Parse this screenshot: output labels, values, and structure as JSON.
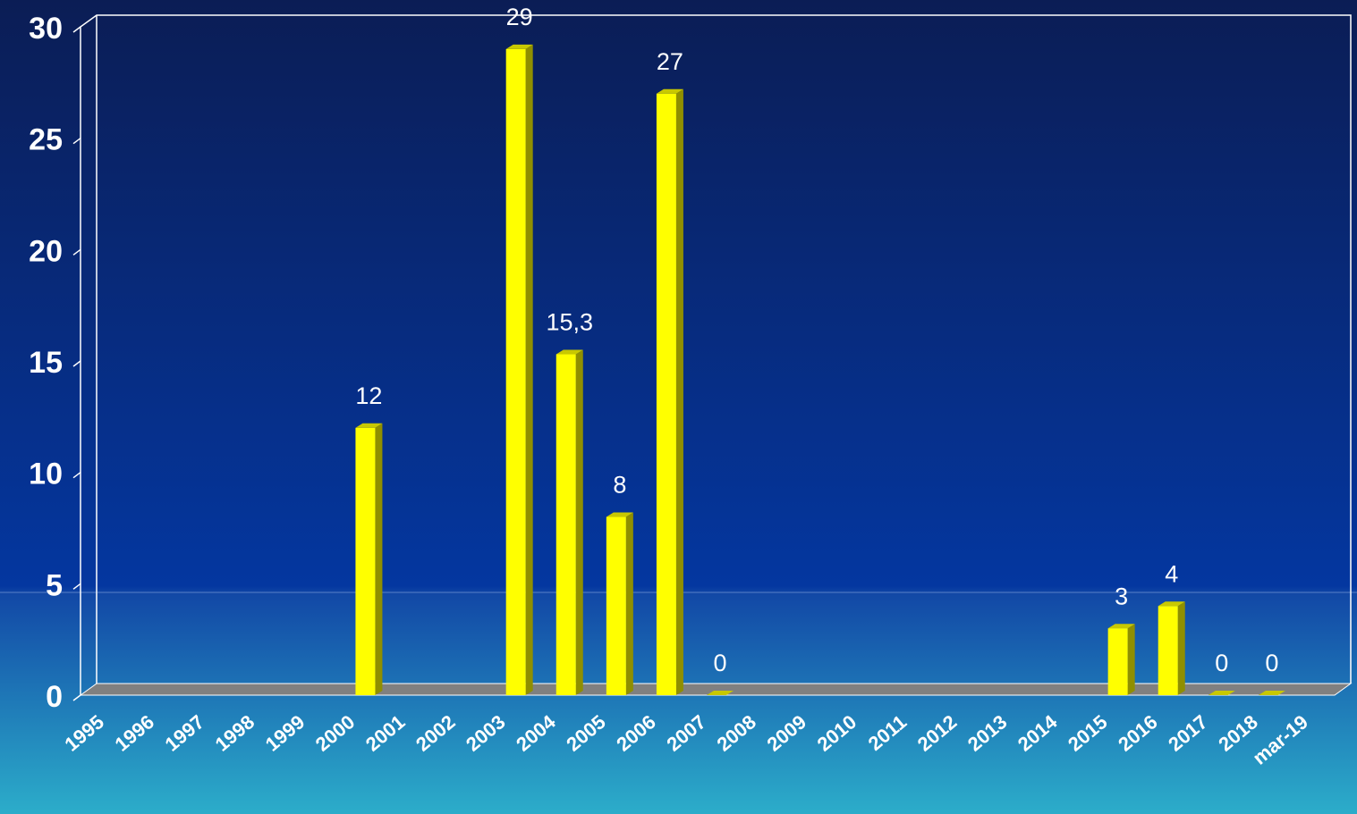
{
  "chart_data": {
    "type": "bar",
    "categories": [
      "1995",
      "1996",
      "1997",
      "1998",
      "1999",
      "2000",
      "2001",
      "2002",
      "2003",
      "2004",
      "2005",
      "2006",
      "2007",
      "2008",
      "2009",
      "2010",
      "2011",
      "2012",
      "2013",
      "2014",
      "2015",
      "2016",
      "2017",
      "2018",
      "mar-19"
    ],
    "values": [
      null,
      null,
      null,
      null,
      null,
      12,
      null,
      null,
      29,
      15.3,
      8,
      27,
      0,
      null,
      null,
      null,
      null,
      null,
      null,
      null,
      3,
      4,
      0,
      0,
      null
    ],
    "value_labels": [
      null,
      null,
      null,
      null,
      null,
      "12",
      null,
      null,
      "29",
      "15,3",
      "8",
      "27",
      "0",
      null,
      null,
      null,
      null,
      null,
      null,
      null,
      "3",
      "4",
      "0",
      "0",
      null
    ],
    "color": "#ffff00",
    "ylim": [
      0,
      30
    ],
    "yticks": [
      0,
      5,
      10,
      15,
      20,
      25,
      30
    ]
  }
}
